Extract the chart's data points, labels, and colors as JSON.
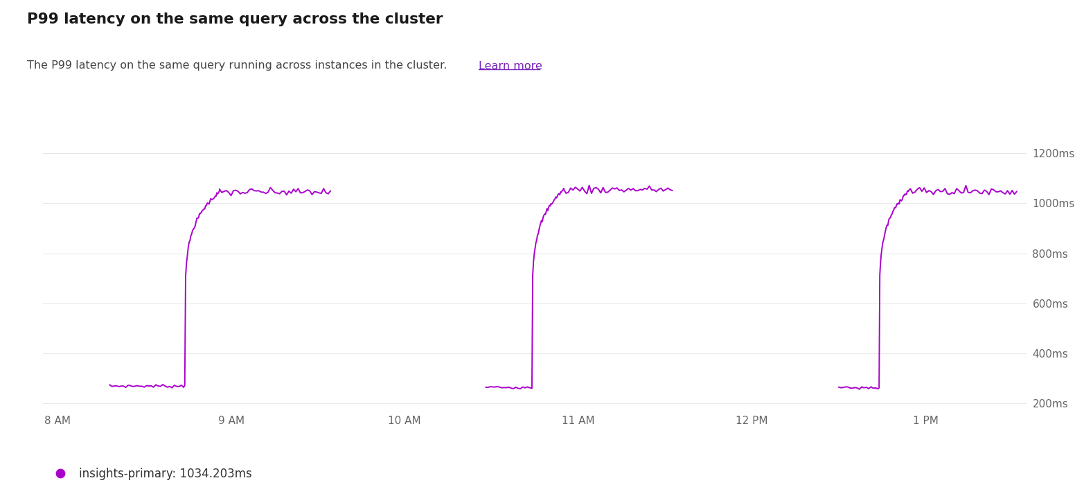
{
  "title": "P99 latency on the same query across the cluster",
  "subtitle": "The P99 latency on the same query running across instances in the cluster. ",
  "subtitle_link": "Learn more",
  "legend_label": "insights-primary: 1034.203ms",
  "line_color": "#aa00cc",
  "link_color": "#7722bb",
  "bg_color": "#ffffff",
  "ylabel_ticks": [
    200,
    400,
    600,
    800,
    1000,
    1200
  ],
  "ylabel_labels": [
    "200ms",
    "400ms",
    "600ms",
    "800ms",
    "1000ms",
    "1200ms"
  ],
  "ymin": 175,
  "ymax": 1260,
  "xmin": -5,
  "xmax": 335,
  "xtick_positions": [
    0,
    60,
    120,
    180,
    240,
    300
  ],
  "xtick_labels": [
    "8 AM",
    "9 AM",
    "10 AM",
    "11 AM",
    "12 PM",
    "1 PM"
  ],
  "segments": [
    {
      "flat_start": 18,
      "flat_end": 44,
      "rise_start": 44,
      "rise_end": 56,
      "plateau_end": 95,
      "base": 270,
      "peak": 1045
    },
    {
      "flat_start": 148,
      "flat_end": 164,
      "rise_start": 164,
      "rise_end": 175,
      "plateau_end": 213,
      "base": 265,
      "peak": 1055
    },
    {
      "flat_start": 270,
      "flat_end": 284,
      "rise_start": 284,
      "rise_end": 294,
      "plateau_end": 332,
      "base": 263,
      "peak": 1048
    }
  ]
}
